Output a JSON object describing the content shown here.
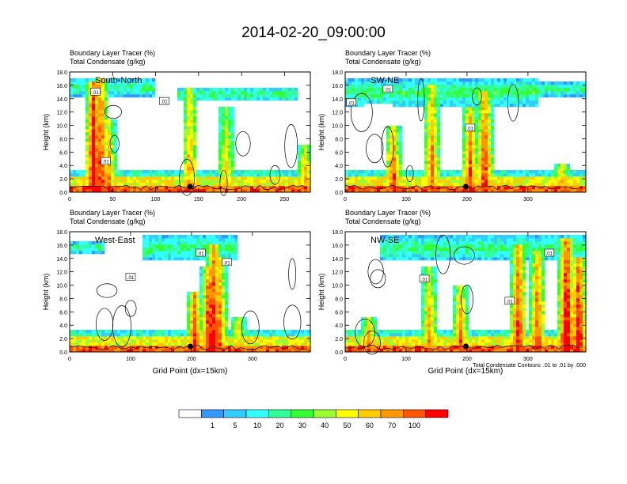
{
  "title": "2014-02-20_09:00:00",
  "palette": [
    "#ffffff",
    "#3399ff",
    "#33ccff",
    "#33ffff",
    "#33ff99",
    "#33ff33",
    "#99ff33",
    "#ffff00",
    "#ffcc00",
    "#ff9900",
    "#ff5500",
    "#ff0000"
  ],
  "colorbar_labels": [
    "1",
    "5",
    "10",
    "20",
    "30",
    "40",
    "50",
    "60",
    "70",
    "100"
  ],
  "contour_note": "Total Condensate Contours: .01 to .01 by .000",
  "chart_data": [
    {
      "type": "heatmap",
      "name": "South-North",
      "header": [
        "Boundary Layer Tracer    (%)",
        "Total Condensate   (g/kg)"
      ],
      "ylabel": "Height (km)",
      "xlabel": "",
      "ylim": [
        0,
        18
      ],
      "yticks": [
        "0.0",
        "2.0",
        "4.0",
        "6.0",
        "8.0",
        "10.0",
        "12.0",
        "14.0",
        "16.0",
        "18.0"
      ],
      "xlim": [
        0,
        280
      ],
      "xticks": [
        0,
        50,
        100,
        150,
        200,
        250
      ],
      "marker_x": 140,
      "contour_labels": [
        ".01",
        ".01",
        ".01"
      ],
      "contour_label_pos": [
        [
          30,
          15.0
        ],
        [
          110,
          13.6
        ],
        [
          42,
          4.6
        ]
      ]
    },
    {
      "type": "heatmap",
      "name": "SW-NE",
      "header": [
        "Boundary Layer Tracer    (%)",
        "Total Condensate   (g/kg)"
      ],
      "ylabel": "Height (km)",
      "xlabel": "",
      "ylim": [
        0,
        18
      ],
      "yticks": [
        "0.0",
        "2.0",
        "4.0",
        "6.0",
        "8.0",
        "10.0",
        "12.0",
        "14.0",
        "16.0",
        "18.0"
      ],
      "xlim": [
        0,
        395
      ],
      "xticks": [
        0,
        100,
        200,
        300
      ],
      "marker_x": 198,
      "contour_labels": [
        ".01",
        ".01",
        ".01"
      ],
      "contour_label_pos": [
        [
          10,
          13.4
        ],
        [
          70,
          15.4
        ],
        [
          205,
          9.6
        ]
      ]
    },
    {
      "type": "heatmap",
      "name": "West-East",
      "header": [
        "Boundary Layer Tracer    (%)",
        "Total Condensate   (g/kg)"
      ],
      "ylabel": "Height (km)",
      "xlabel": "Grid Point (dx=15km)",
      "ylim": [
        0,
        18
      ],
      "yticks": [
        "0.0",
        "2.0",
        "4.0",
        "6.0",
        "8.0",
        "10.0",
        "12.0",
        "14.0",
        "16.0",
        "18.0"
      ],
      "xlim": [
        0,
        395
      ],
      "xticks": [
        0,
        100,
        200,
        300
      ],
      "marker_x": 198,
      "contour_labels": [
        ".01",
        ".01",
        ".01"
      ],
      "contour_label_pos": [
        [
          100,
          11.2
        ],
        [
          215,
          14.8
        ],
        [
          258,
          13.4
        ]
      ]
    },
    {
      "type": "heatmap",
      "name": "NW-SE",
      "header": [
        "Boundary Layer Tracer    (%)",
        "Total Condensate   (g/kg)"
      ],
      "ylabel": "Height (km)",
      "xlabel": "Grid Point (dx=15km)",
      "ylim": [
        0,
        18
      ],
      "yticks": [
        "0.0",
        "2.0",
        "4.0",
        "6.0",
        "8.0",
        "10.0",
        "12.0",
        "14.0",
        "16.0",
        "18.0"
      ],
      "xlim": [
        0,
        395
      ],
      "xticks": [
        0,
        100,
        200,
        300
      ],
      "marker_x": 198,
      "contour_labels": [
        ".01",
        ".01",
        ".01"
      ],
      "contour_label_pos": [
        [
          130,
          10.9
        ],
        [
          270,
          7.6
        ],
        [
          335,
          14.8
        ]
      ]
    }
  ]
}
